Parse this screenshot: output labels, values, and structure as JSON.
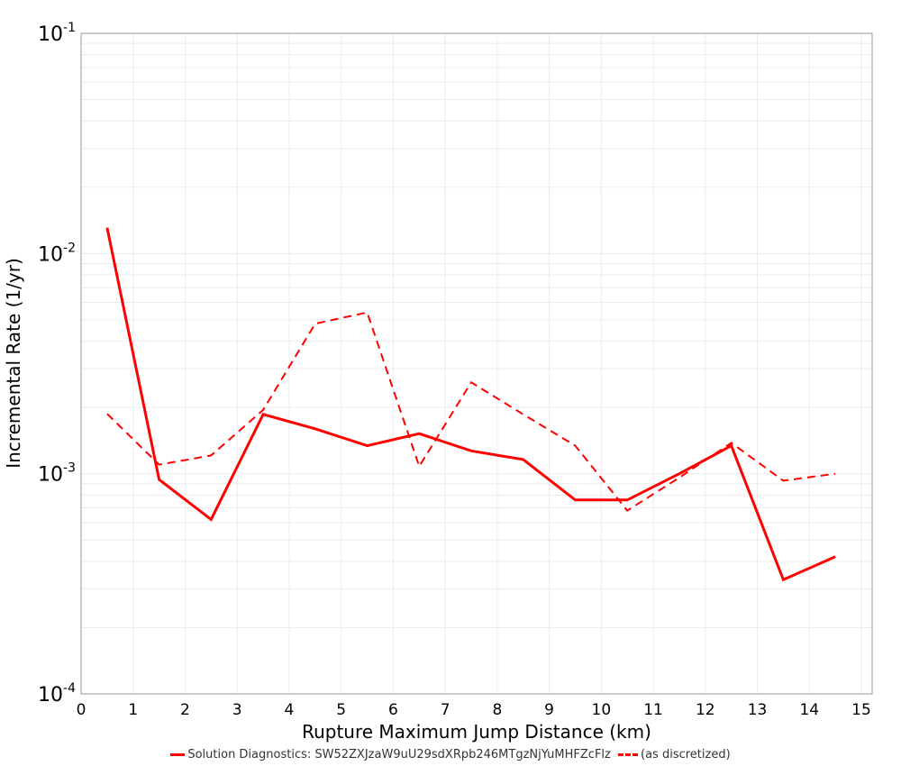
{
  "chart_data": {
    "type": "line",
    "title": "",
    "xlabel": "Rupture Maximum Jump Distance (km)",
    "ylabel": "Incremental Rate (1/yr)",
    "xlim": [
      0,
      15.2
    ],
    "ylim": [
      0.0001,
      0.1
    ],
    "yscale": "log",
    "x_ticks": [
      "0",
      "1",
      "2",
      "3",
      "4",
      "5",
      "6",
      "7",
      "8",
      "9",
      "10",
      "11",
      "12",
      "13",
      "14",
      "15"
    ],
    "y_ticks": [
      {
        "base": "10",
        "exp": "-1",
        "value": 0.1
      },
      {
        "base": "10",
        "exp": "-2",
        "value": 0.01
      },
      {
        "base": "10",
        "exp": "-3",
        "value": 0.001
      },
      {
        "base": "10",
        "exp": "-4",
        "value": 0.0001
      }
    ],
    "grid": true,
    "legend_position": "bottom",
    "x": [
      0.5,
      1.5,
      2.5,
      3.5,
      4.5,
      5.5,
      6.5,
      7.5,
      8.5,
      9.5,
      10.5,
      11.5,
      12.5,
      13.5,
      14.5
    ],
    "series": [
      {
        "name": "Solution Diagnostics: SW52ZXJzaW9uU29sdXRpb246MTgzNjYuMHFZcFlz",
        "style": "solid",
        "color": "#ff0000",
        "values": [
          0.0131,
          0.00094,
          0.00062,
          0.00186,
          0.0016,
          0.00134,
          0.00152,
          0.00127,
          0.00116,
          0.00076,
          0.00076,
          0.001,
          0.00134,
          0.00033,
          0.00042
        ]
      },
      {
        "name": "(as discretized)",
        "style": "dashed",
        "color": "#ff0000",
        "values": [
          0.00187,
          0.0011,
          0.00121,
          0.00195,
          0.0048,
          0.0054,
          0.00108,
          0.0026,
          0.00186,
          0.00134,
          0.00068,
          0.00096,
          0.00138,
          0.00093,
          0.001
        ]
      }
    ]
  },
  "legend": {
    "items": [
      {
        "label": "Solution Diagnostics: SW52ZXJzaW9uU29sdXRpb246MTgzNjYuMHFZcFlz"
      },
      {
        "label": "(as discretized)"
      }
    ]
  }
}
